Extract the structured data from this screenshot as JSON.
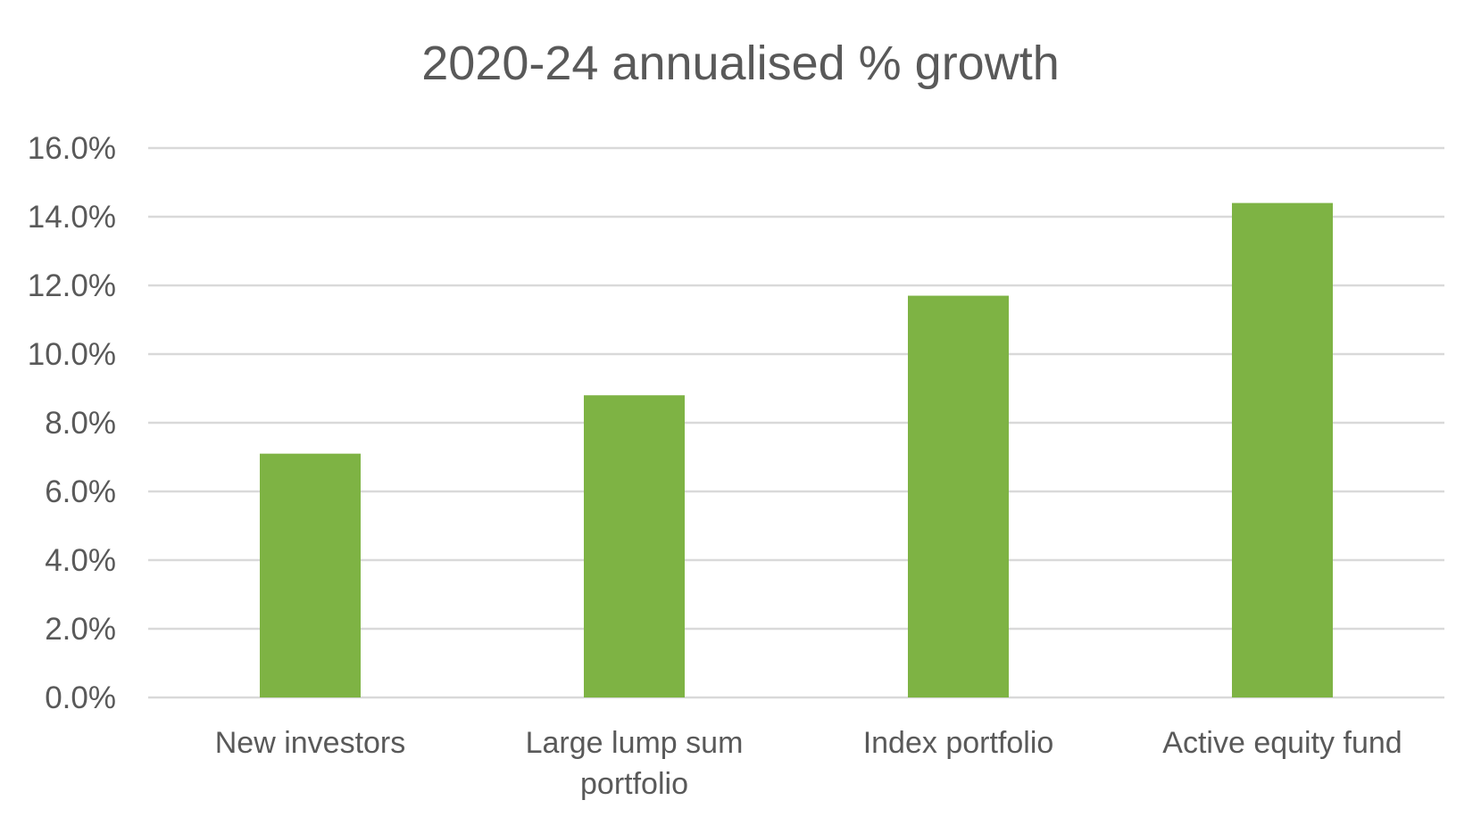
{
  "chart_data": {
    "type": "bar",
    "title": "2020-24 annualised % growth",
    "categories": [
      "New investors",
      "Large lump sum portfolio",
      "Index portfolio",
      "Active equity fund"
    ],
    "category_lines": [
      [
        "New investors"
      ],
      [
        "Large lump sum",
        "portfolio"
      ],
      [
        "Index portfolio"
      ],
      [
        "Active equity fund"
      ]
    ],
    "values": [
      7.1,
      8.8,
      11.7,
      14.4
    ],
    "ylim": [
      0,
      16
    ],
    "yticks": [
      "0.0%",
      "2.0%",
      "4.0%",
      "6.0%",
      "8.0%",
      "10.0%",
      "12.0%",
      "14.0%",
      "16.0%"
    ],
    "xlabel": "",
    "ylabel": "",
    "grid": true,
    "legend": "none",
    "colors": {
      "bar": "#7EB344",
      "grid": "#D9D9D9",
      "text": "#595959"
    }
  }
}
